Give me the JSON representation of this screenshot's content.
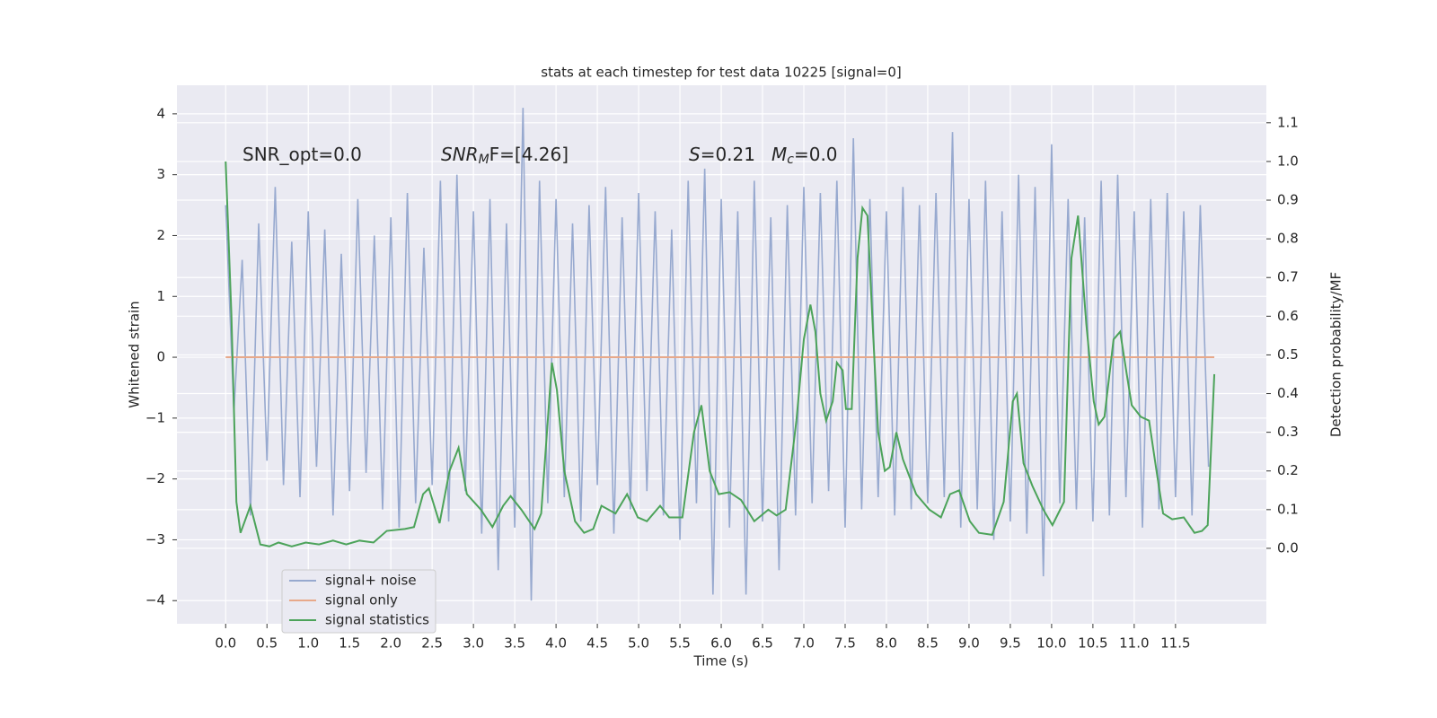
{
  "chart_data": {
    "type": "line",
    "title": "stats at each timestep for test data 10225 [signal=0]",
    "xlabel": "Time (s)",
    "ylabel": "Whitened strain",
    "y2label": "Detection probability/MF",
    "xlim": [
      -0.59,
      12.6
    ],
    "ylim": [
      -4.38,
      4.47
    ],
    "y2lim": [
      -0.195,
      1.197
    ],
    "xticks": [
      {
        "value": 0,
        "label": "0.0"
      },
      0.5,
      {
        "value": 1,
        "label": "1.0"
      },
      1.5,
      {
        "value": 2,
        "label": "2.0"
      },
      2.5,
      {
        "value": 3,
        "label": "3.0"
      },
      3.5,
      {
        "value": 4,
        "label": "4.0"
      },
      4.5,
      {
        "value": 5,
        "label": "5.0"
      },
      5.5,
      {
        "value": 6,
        "label": "6.0"
      },
      6.5,
      {
        "value": 7,
        "label": "7.0"
      },
      7.5,
      {
        "value": 8,
        "label": "8.0"
      },
      8.5,
      {
        "value": 9,
        "label": "9.0"
      },
      9.5,
      {
        "value": 10,
        "label": "10.0"
      },
      10.5,
      {
        "value": 11,
        "label": "11.0"
      },
      11.5
    ],
    "yticks": [
      {
        "value": -4,
        "label": "−4"
      },
      {
        "value": -3,
        "label": "−3"
      },
      {
        "value": -2,
        "label": "−2"
      },
      {
        "value": -1,
        "label": "−1"
      },
      0,
      1,
      2,
      3,
      4
    ],
    "y2ticks": [
      {
        "value": 0,
        "label": "0.0"
      },
      0.1,
      0.2,
      0.3,
      0.4,
      0.5,
      0.6,
      0.7,
      0.8,
      0.9,
      {
        "value": 1,
        "label": "1.0"
      },
      1.1
    ],
    "grid": true,
    "legend": "lower left",
    "annotations": [
      {
        "text": "SNR_opt=0.0"
      },
      {
        "base": "SNR",
        "sub": "M",
        "tail": "F=[4.26]"
      },
      {
        "base": "S",
        "tail": "=0.21"
      },
      {
        "base": "M",
        "sub": "c",
        "tail": "=0.0"
      }
    ],
    "series": [
      {
        "name": "signal+ noise",
        "color": "#97a9cf",
        "x": [
          0,
          0.1,
          0.2,
          0.3,
          0.4,
          0.5,
          0.6,
          0.7,
          0.8,
          0.9,
          1,
          1.1,
          1.2,
          1.3,
          1.4,
          1.5,
          1.6,
          1.7,
          1.8,
          1.9,
          2,
          2.1,
          2.2,
          2.3,
          2.4,
          2.5,
          2.6,
          2.7,
          2.8,
          2.9,
          3,
          3.1,
          3.2,
          3.3,
          3.4,
          3.5,
          3.6,
          3.7,
          3.8,
          3.9,
          4,
          4.1,
          4.2,
          4.3,
          4.4,
          4.5,
          4.6,
          4.7,
          4.8,
          4.9,
          5,
          5.1,
          5.2,
          5.3,
          5.4,
          5.5,
          5.6,
          5.7,
          5.8,
          5.9,
          6,
          6.1,
          6.2,
          6.3,
          6.4,
          6.5,
          6.6,
          6.7,
          6.8,
          6.9,
          7,
          7.1,
          7.2,
          7.3,
          7.4,
          7.5,
          7.6,
          7.7,
          7.8,
          7.9,
          8,
          8.1,
          8.2,
          8.3,
          8.4,
          8.5,
          8.6,
          8.7,
          8.8,
          8.9,
          9,
          9.1,
          9.2,
          9.3,
          9.4,
          9.5,
          9.6,
          9.7,
          9.8,
          9.9,
          10,
          10.1,
          10.2,
          10.3,
          10.4,
          10.5,
          10.6,
          10.7,
          10.8,
          10.9,
          11,
          11.1,
          11.2,
          11.3,
          11.4,
          11.5,
          11.6,
          11.7,
          11.8,
          11.9
        ],
        "values": [
          2.5,
          -0.9,
          1.6,
          -2.6,
          2.2,
          -1.7,
          2.8,
          -2.1,
          1.9,
          -2.3,
          2.4,
          -1.8,
          2.1,
          -2.6,
          1.7,
          -2.2,
          2.6,
          -1.9,
          2.0,
          -2.5,
          2.3,
          -2.8,
          2.7,
          -2.4,
          1.8,
          -2.1,
          2.9,
          -2.7,
          3.0,
          -2.2,
          2.4,
          -2.9,
          2.6,
          -3.5,
          2.2,
          -2.8,
          4.1,
          -4.0,
          2.9,
          -2.4,
          2.6,
          -2.3,
          2.2,
          -2.7,
          2.5,
          -2.1,
          2.8,
          -2.9,
          2.3,
          -2.5,
          2.7,
          -2.2,
          2.4,
          -2.6,
          2.1,
          -3.0,
          2.9,
          -2.4,
          3.1,
          -3.9,
          2.6,
          -2.8,
          2.4,
          -3.9,
          2.9,
          -2.7,
          2.3,
          -3.5,
          2.5,
          -2.6,
          2.8,
          -2.4,
          2.7,
          -2.2,
          2.9,
          -2.8,
          3.6,
          -2.5,
          2.6,
          -2.3,
          2.4,
          -2.6,
          2.8,
          -2.5,
          2.5,
          -2.4,
          2.7,
          -2.3,
          3.7,
          -2.8,
          2.6,
          -2.5,
          2.9,
          -3.0,
          2.4,
          -2.7,
          3.0,
          -2.9,
          2.8,
          -3.6,
          3.5,
          -2.4,
          2.6,
          -2.5,
          2.3,
          -2.7,
          2.9,
          -2.6,
          3.0,
          -2.3,
          2.4,
          -2.8,
          2.6,
          -2.5,
          2.7,
          -2.3,
          2.4,
          -2.6,
          2.5,
          -1.8
        ]
      },
      {
        "name": "signal only",
        "color": "#e8a98a",
        "x": [
          0,
          11.97
        ],
        "values": [
          0,
          0
        ]
      },
      {
        "name": "signal statistics",
        "color": "#4ca35a",
        "axis": "y2",
        "x": [
          0,
          0.07,
          0.13,
          0.18,
          0.3,
          0.42,
          0.53,
          0.64,
          0.8,
          0.97,
          1.13,
          1.3,
          1.46,
          1.62,
          1.79,
          1.95,
          2.17,
          2.28,
          2.39,
          2.46,
          2.59,
          2.71,
          2.82,
          2.92,
          3.09,
          3.23,
          3.36,
          3.45,
          3.58,
          3.74,
          3.82,
          3.95,
          4.01,
          4.1,
          4.23,
          4.34,
          4.45,
          4.55,
          4.72,
          4.86,
          4.99,
          5.1,
          5.26,
          5.37,
          5.53,
          5.67,
          5.76,
          5.86,
          5.97,
          6.1,
          6.24,
          6.4,
          6.57,
          6.67,
          6.78,
          6.91,
          7.0,
          7.08,
          7.14,
          7.2,
          7.27,
          7.35,
          7.4,
          7.47,
          7.51,
          7.58,
          7.65,
          7.71,
          7.77,
          7.84,
          7.9,
          7.98,
          8.04,
          8.12,
          8.2,
          8.36,
          8.52,
          8.66,
          8.77,
          8.88,
          9.01,
          9.12,
          9.28,
          9.42,
          9.53,
          9.58,
          9.66,
          9.77,
          9.9,
          10.01,
          10.15,
          10.24,
          10.32,
          10.42,
          10.51,
          10.57,
          10.64,
          10.75,
          10.83,
          10.91,
          10.97,
          11.08,
          11.18,
          11.27,
          11.35,
          11.46,
          11.6,
          11.73,
          11.82,
          11.89,
          11.97
        ],
        "values": [
          1.0,
          0.6,
          0.12,
          0.04,
          0.11,
          0.01,
          0.005,
          0.015,
          0.005,
          0.015,
          0.01,
          0.02,
          0.01,
          0.02,
          0.015,
          0.045,
          0.05,
          0.055,
          0.14,
          0.155,
          0.065,
          0.2,
          0.26,
          0.14,
          0.1,
          0.055,
          0.11,
          0.135,
          0.1,
          0.05,
          0.09,
          0.48,
          0.41,
          0.2,
          0.07,
          0.04,
          0.05,
          0.11,
          0.09,
          0.14,
          0.08,
          0.07,
          0.11,
          0.08,
          0.08,
          0.3,
          0.37,
          0.2,
          0.14,
          0.145,
          0.125,
          0.07,
          0.1,
          0.085,
          0.1,
          0.33,
          0.54,
          0.63,
          0.56,
          0.4,
          0.33,
          0.38,
          0.48,
          0.46,
          0.36,
          0.36,
          0.75,
          0.88,
          0.86,
          0.55,
          0.3,
          0.2,
          0.21,
          0.3,
          0.23,
          0.14,
          0.1,
          0.08,
          0.14,
          0.15,
          0.07,
          0.04,
          0.035,
          0.12,
          0.38,
          0.4,
          0.22,
          0.16,
          0.1,
          0.06,
          0.12,
          0.75,
          0.86,
          0.58,
          0.38,
          0.32,
          0.34,
          0.54,
          0.56,
          0.45,
          0.37,
          0.34,
          0.33,
          0.2,
          0.09,
          0.075,
          0.08,
          0.04,
          0.045,
          0.06,
          0.45
        ]
      }
    ]
  }
}
